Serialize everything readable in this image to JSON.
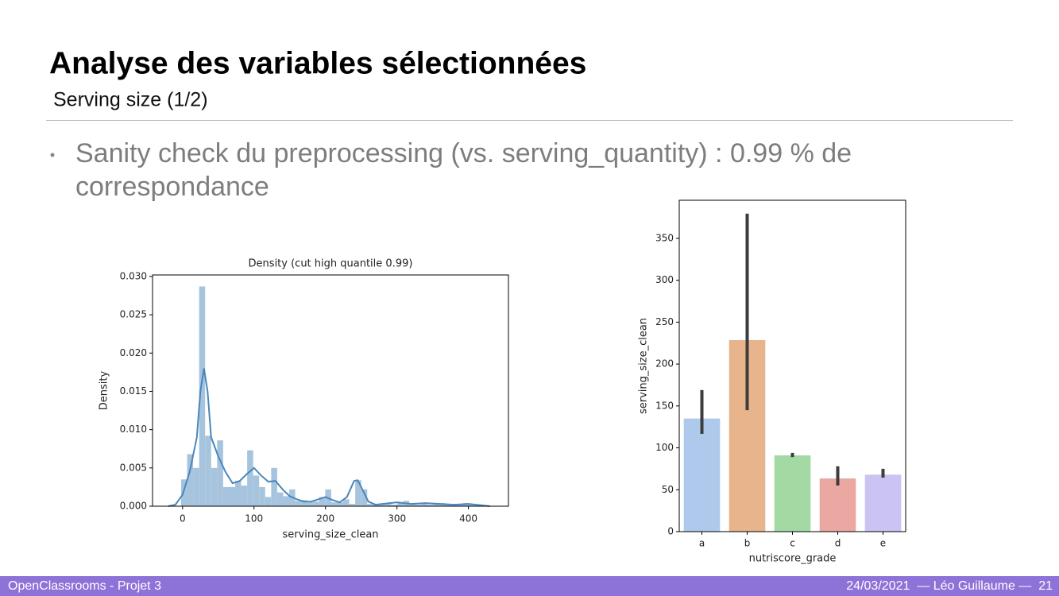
{
  "header": {
    "title": "Analyse des variables sélectionnées",
    "subtitle": "Serving size (1/2)"
  },
  "bullet": {
    "lines": [
      "Sanity check du preprocessing (vs. serving_quantity) : 0.99 % de",
      "correspondance"
    ]
  },
  "footer": {
    "left": "OpenClassrooms - Projet 3",
    "right": "24/03/2021  — Léo Guillaume —  21"
  },
  "chart_data": [
    {
      "type": "histogram",
      "title": "Density (cut high quantile 0.99)",
      "x_label": "serving_size_clean",
      "y_label": "Density",
      "color": "#a7c4de",
      "kde_color": "#4a86bb",
      "bins": [
        -2,
        6.4,
        14.8,
        23.2,
        31.6,
        40,
        48.4,
        56.8,
        65.2,
        73.6,
        82,
        90.4,
        98.8,
        107.2,
        115.6,
        124,
        132.4,
        140.8,
        149.2,
        157.6,
        166,
        174.4,
        182.8,
        191.2,
        199.6,
        208,
        216.4,
        224.8,
        233.2,
        241.6,
        250,
        258.4,
        266.8,
        275.2,
        283.6,
        292,
        300.4,
        308.8,
        317.2,
        325.6,
        334,
        342.4,
        350.8,
        359.2,
        367.6,
        376,
        384.4,
        392.8,
        401.2,
        409.6,
        418
      ],
      "values": [
        0.0035,
        0.0068,
        0.005,
        0.0287,
        0.0092,
        0.005,
        0.0086,
        0.0025,
        0.0025,
        0.0033,
        0.0027,
        0.0073,
        0.004,
        0.0025,
        0.0012,
        0.005,
        0.0018,
        0.0013,
        0.0022,
        0.0007,
        0.0008,
        0.0005,
        0.0006,
        0.0012,
        0.0022,
        0.0005,
        0.0005,
        0.0009,
        0.0003,
        0.0034,
        0.0022,
        0.0003,
        0.0002,
        0.0003,
        0.0003,
        0.0002,
        0.0004,
        0.0007,
        0.0003,
        0.0002,
        0.0003,
        0.0002,
        0.0004,
        0.0004,
        0.0002,
        0.0002,
        0.0002,
        0.0004,
        0.0002,
        0.0001
      ],
      "kde": {
        "x": [
          -20,
          -10,
          0,
          10,
          20,
          25,
          30,
          35,
          40,
          50,
          60,
          70,
          80,
          90,
          100,
          110,
          120,
          130,
          140,
          150,
          160,
          170,
          180,
          190,
          200,
          210,
          220,
          230,
          240,
          245,
          250,
          260,
          270,
          280,
          300,
          320,
          340,
          360,
          380,
          400,
          420,
          430
        ],
        "values": [
          0,
          0.0002,
          0.0015,
          0.0045,
          0.009,
          0.015,
          0.018,
          0.015,
          0.009,
          0.0065,
          0.0045,
          0.003,
          0.0033,
          0.0042,
          0.005,
          0.004,
          0.0032,
          0.0033,
          0.0022,
          0.0013,
          0.0009,
          0.0006,
          0.0006,
          0.0009,
          0.0012,
          0.0008,
          0.0005,
          0.0012,
          0.0033,
          0.0034,
          0.0025,
          0.0006,
          0.0002,
          0.0003,
          0.0005,
          0.0003,
          0.0004,
          0.0003,
          0.0002,
          0.0003,
          0.0001,
          0
        ]
      },
      "xlim": [
        -42,
        456
      ],
      "xticks": [
        0,
        100,
        200,
        300,
        400
      ],
      "ylim": [
        0,
        0.0302
      ],
      "yticks": [
        {
          "value": 0,
          "label": "0.000"
        },
        {
          "value": 0.005,
          "label": "0.005"
        },
        {
          "value": 0.01,
          "label": "0.010"
        },
        {
          "value": 0.015,
          "label": "0.015"
        },
        {
          "value": 0.02,
          "label": "0.020"
        },
        {
          "value": 0.025,
          "label": "0.025"
        },
        {
          "value": 0.03,
          "label": "0.030"
        }
      ]
    },
    {
      "type": "bar",
      "x_label": "nutriscore_grade",
      "y_label": "serving_size_clean",
      "categories": [
        "a",
        "b",
        "c",
        "d",
        "e"
      ],
      "values": [
        135,
        228.6,
        91,
        63.5,
        68
      ],
      "ci_low": [
        116.7,
        145,
        89,
        55,
        64.5
      ],
      "ci_high": [
        169,
        379.5,
        94,
        78,
        75
      ],
      "colors": [
        "#aec9eb",
        "#e8b48c",
        "#a3d9a3",
        "#eba8a3",
        "#cbc3f3"
      ],
      "error_color": "#3c3c3c",
      "ylim": [
        0,
        395.5
      ],
      "yticks": [
        0,
        50,
        100,
        150,
        200,
        250,
        300,
        350
      ]
    }
  ]
}
